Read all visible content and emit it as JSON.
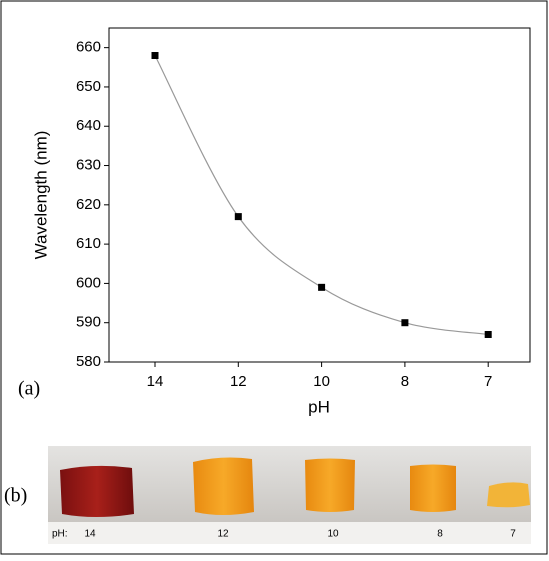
{
  "chart_data": {
    "type": "line",
    "categories": [
      "14",
      "12",
      "10",
      "8",
      "7"
    ],
    "series": [
      {
        "name": "Wavelength",
        "color": "#000000",
        "line_color": "#999999",
        "values": [
          658,
          617,
          599,
          590,
          587
        ]
      }
    ],
    "xlabel": "pH",
    "ylabel": "Wavelength (nm)",
    "ylim": [
      580,
      665
    ],
    "yticks": [
      580,
      590,
      600,
      610,
      620,
      630,
      640,
      650,
      660
    ],
    "panel_label": "(a)"
  },
  "photo": {
    "panel_label": "(b)",
    "label": "pH:",
    "samples": [
      "14",
      "12",
      "10",
      "8",
      "7"
    ]
  }
}
